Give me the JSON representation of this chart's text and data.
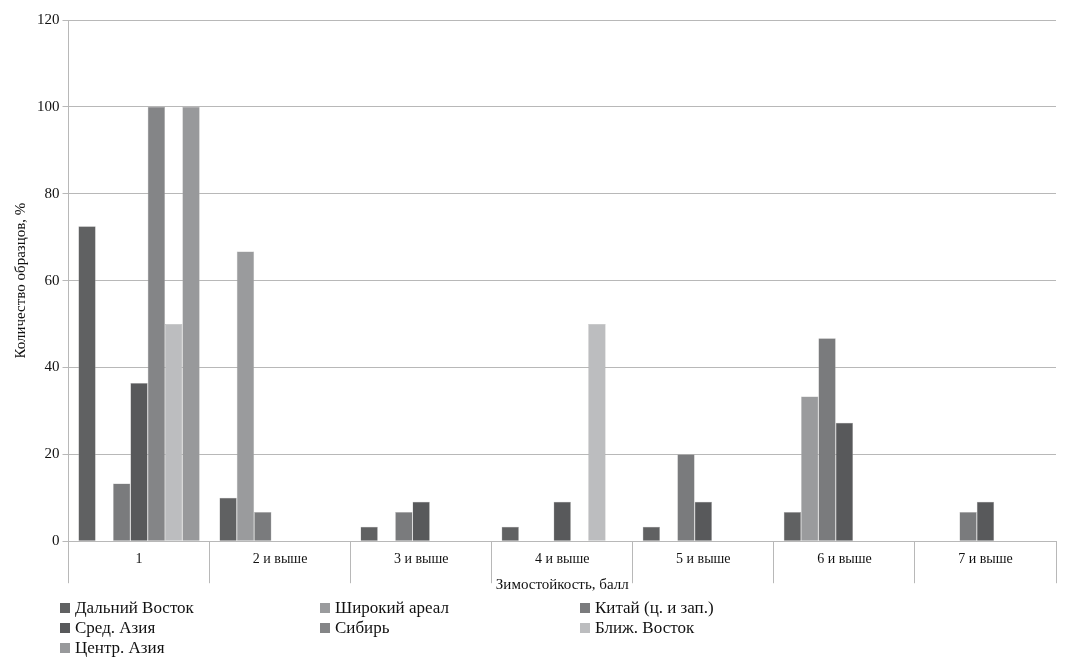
{
  "chart_data": {
    "type": "bar",
    "xlabel": "Зимостойкость, балл",
    "ylabel": "Количество образцов, %",
    "categories": [
      "1",
      "2 и выше",
      "3 и выше",
      "4 и выше",
      "5 и выше",
      "6 и выше",
      "7 и выше"
    ],
    "ylim": [
      0,
      120
    ],
    "yticks": [
      0,
      20,
      40,
      60,
      80,
      100,
      120
    ],
    "grid": "y",
    "legend": "bottom",
    "series": [
      {
        "name": "Дальний Восток",
        "color": "#606162",
        "values": [
          72.5,
          10,
          3.3,
          3.3,
          3.3,
          6.7,
          0
        ]
      },
      {
        "name": "Широкий ареал",
        "color": "#9a9b9d",
        "values": [
          0,
          66.7,
          0,
          0,
          0,
          33.3,
          0
        ]
      },
      {
        "name": "Китай (ц. и зап.)",
        "color": "#7a7b7d",
        "values": [
          13.3,
          6.7,
          6.7,
          0,
          20,
          46.7,
          6.7
        ]
      },
      {
        "name": "Сред. Азия",
        "color": "#58595b",
        "values": [
          36.4,
          0,
          9.1,
          9.1,
          9.1,
          27.3,
          9.1
        ]
      },
      {
        "name": "Сибирь",
        "color": "#848587",
        "values": [
          100,
          0,
          0,
          0,
          0,
          0,
          0
        ]
      },
      {
        "name": "Ближ. Восток",
        "color": "#bcbdbf",
        "values": [
          50,
          0,
          0,
          50,
          0,
          0,
          0
        ]
      },
      {
        "name": "Центр. Азия",
        "color": "#98999b",
        "values": [
          100,
          0,
          0,
          0,
          0,
          0,
          0
        ]
      }
    ]
  }
}
